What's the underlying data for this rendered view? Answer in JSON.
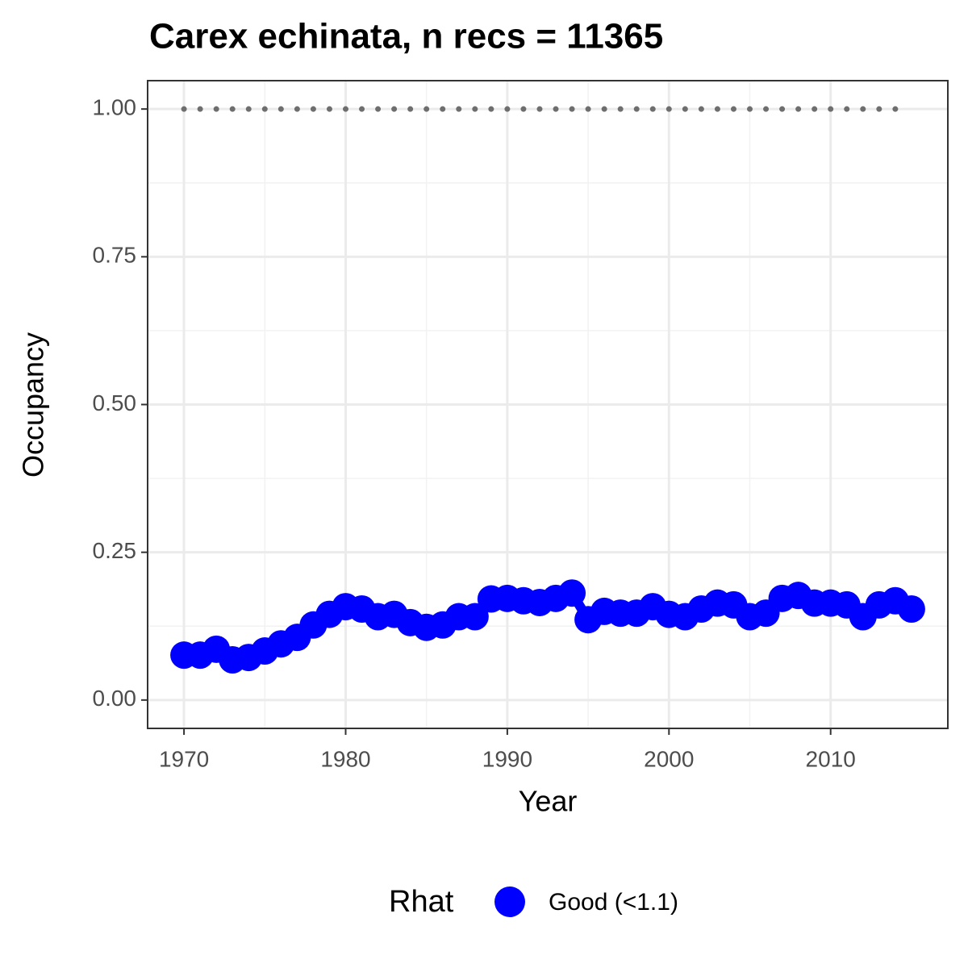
{
  "chart_data": {
    "type": "line",
    "title": "Carex echinata, n recs = 11365",
    "x_label": "Year",
    "y_label": "Occupancy",
    "legend_title": "Rhat",
    "legend_position": "bottom",
    "x": [
      1970,
      1971,
      1972,
      1973,
      1974,
      1975,
      1976,
      1977,
      1978,
      1979,
      1980,
      1981,
      1982,
      1983,
      1984,
      1985,
      1986,
      1987,
      1988,
      1989,
      1990,
      1991,
      1992,
      1993,
      1994,
      1995,
      1996,
      1997,
      1998,
      1999,
      2000,
      2001,
      2002,
      2003,
      2004,
      2005,
      2006,
      2007,
      2008,
      2009,
      2010,
      2011,
      2012,
      2013,
      2014,
      2015
    ],
    "series": [
      {
        "name": "Good (<1.1)",
        "color": "#0000ff",
        "values": [
          0.076,
          0.076,
          0.086,
          0.068,
          0.072,
          0.083,
          0.095,
          0.106,
          0.127,
          0.145,
          0.158,
          0.154,
          0.141,
          0.145,
          0.131,
          0.123,
          0.127,
          0.141,
          0.141,
          0.171,
          0.172,
          0.168,
          0.165,
          0.172,
          0.181,
          0.136,
          0.15,
          0.147,
          0.147,
          0.158,
          0.145,
          0.141,
          0.154,
          0.164,
          0.161,
          0.141,
          0.147,
          0.172,
          0.177,
          0.164,
          0.164,
          0.161,
          0.141,
          0.161,
          0.168,
          0.154
        ]
      }
    ],
    "reference_line": 1,
    "reference_color": "#6e6e6e",
    "xlim": [
      1967.75,
      2017.25
    ],
    "xticks": [
      1970,
      1980,
      1990,
      2000,
      2010
    ],
    "ylim": [
      -0.048,
      1.048
    ],
    "yticks": [
      {
        "value": 0,
        "label": "0.00"
      },
      {
        "value": 0.25,
        "label": "0.25"
      },
      {
        "value": 0.5,
        "label": "0.50"
      },
      {
        "value": 0.75,
        "label": "0.75"
      },
      {
        "value": 1,
        "label": "1.00"
      }
    ],
    "grid": true
  }
}
